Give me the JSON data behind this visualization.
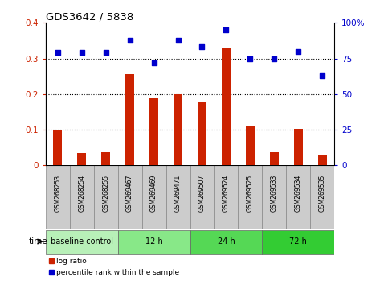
{
  "title": "GDS3642 / 5838",
  "samples": [
    "GSM268253",
    "GSM268254",
    "GSM268255",
    "GSM269467",
    "GSM269469",
    "GSM269471",
    "GSM269507",
    "GSM269524",
    "GSM269525",
    "GSM269533",
    "GSM269534",
    "GSM269535"
  ],
  "log_ratio": [
    0.1,
    0.035,
    0.038,
    0.255,
    0.188,
    0.2,
    0.178,
    0.328,
    0.11,
    0.037,
    0.102,
    0.03
  ],
  "percentile_rank": [
    79,
    79,
    79,
    88,
    72,
    88,
    83,
    95,
    75,
    75,
    80,
    63
  ],
  "bar_color": "#cc2200",
  "dot_color": "#0000cc",
  "ylim_left": [
    0,
    0.4
  ],
  "ylim_right": [
    0,
    100
  ],
  "yticks_left": [
    0.0,
    0.1,
    0.2,
    0.3,
    0.4
  ],
  "ytick_labels_left": [
    "0",
    "0.1",
    "0.2",
    "0.3",
    "0.4"
  ],
  "yticks_right": [
    0,
    25,
    50,
    75,
    100
  ],
  "ytick_labels_right": [
    "0",
    "25",
    "50",
    "75",
    "100%"
  ],
  "groups": [
    {
      "label": "baseline control",
      "start": 0,
      "end": 3,
      "color": "#b8f0b8"
    },
    {
      "label": "12 h",
      "start": 3,
      "end": 6,
      "color": "#88e888"
    },
    {
      "label": "24 h",
      "start": 6,
      "end": 9,
      "color": "#55d855"
    },
    {
      "label": "72 h",
      "start": 9,
      "end": 12,
      "color": "#33cc33"
    }
  ],
  "time_label": "time",
  "legend_items": [
    {
      "label": "log ratio",
      "color": "#cc2200",
      "marker": "s"
    },
    {
      "label": "percentile rank within the sample",
      "color": "#0000cc",
      "marker": "s"
    }
  ],
  "bg_color": "#ffffff",
  "plot_bg_color": "#ffffff",
  "col_bg_color": "#cccccc",
  "col_border_color": "#888888",
  "grid_color": "#000000",
  "tick_label_color_left": "#cc2200",
  "tick_label_color_right": "#0000cc"
}
